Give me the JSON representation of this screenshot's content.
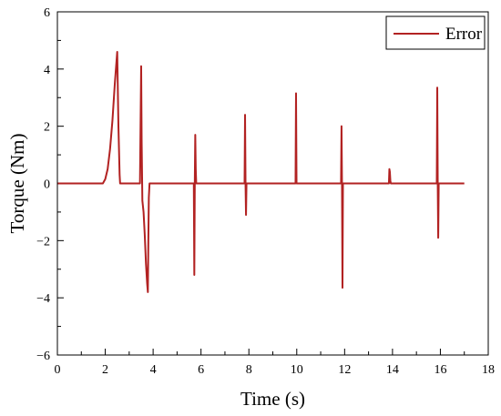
{
  "chart_data": {
    "type": "line",
    "title": "",
    "xlabel": "Time (s)",
    "ylabel": "Torque  (Nm)",
    "xlim": [
      0,
      18
    ],
    "ylim": [
      -6,
      6
    ],
    "xticks": [
      0,
      2,
      4,
      6,
      8,
      10,
      12,
      14,
      16,
      18
    ],
    "yticks": [
      -6,
      -4,
      -2,
      0,
      2,
      4,
      6
    ],
    "xtick_labels": [
      "0",
      "2",
      "4",
      "6",
      "8",
      "10",
      "12",
      "14",
      "16",
      "18"
    ],
    "ytick_labels": [
      "−6",
      "−4",
      "−2",
      "0",
      "2",
      "4",
      "6"
    ],
    "grid": false,
    "legend_position": "top-right",
    "series": [
      {
        "name": "Error",
        "color": "#b22222",
        "x": [
          0,
          1.9,
          2.0,
          2.1,
          2.2,
          2.3,
          2.4,
          2.5,
          2.55,
          2.6,
          2.62,
          3.45,
          3.5,
          3.52,
          3.55,
          3.6,
          3.65,
          3.7,
          3.75,
          3.78,
          3.8,
          3.82,
          3.85,
          5.7,
          5.72,
          5.74,
          5.76,
          5.78,
          5.8,
          7.82,
          7.84,
          7.86,
          7.88,
          7.9,
          9.95,
          9.97,
          9.99,
          10.01,
          11.85,
          11.87,
          11.89,
          11.91,
          11.93,
          13.85,
          13.87,
          13.89,
          13.91,
          13.93,
          15.85,
          15.87,
          15.89,
          15.91,
          15.93,
          17.0
        ],
        "y": [
          0,
          0,
          0.15,
          0.5,
          1.2,
          2.2,
          3.5,
          4.6,
          2.0,
          0.3,
          0,
          0,
          4.1,
          1.5,
          -0.6,
          -1.0,
          -1.8,
          -2.8,
          -3.5,
          -3.8,
          -2.0,
          -0.5,
          0,
          0,
          -3.2,
          0,
          1.7,
          0.5,
          0,
          0,
          2.4,
          0,
          -1.1,
          0,
          0,
          3.15,
          0,
          0,
          0,
          2.0,
          0,
          -3.65,
          0,
          0,
          0.5,
          0.4,
          0.1,
          0,
          0,
          3.35,
          0,
          -1.9,
          0,
          0
        ]
      }
    ]
  }
}
